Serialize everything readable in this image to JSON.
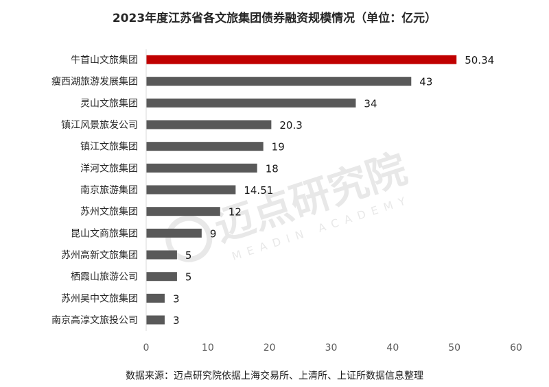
{
  "chart_data": {
    "type": "bar",
    "orientation": "horizontal",
    "title": "2023年度江苏省各文旅集团债券融资规模情况（单位：亿元）",
    "categories": [
      "牛首山文旅集团",
      "瘦西湖旅游发展集团",
      "灵山文旅集团",
      "镇江风景旅发公司",
      "镇江文旅集团",
      "洋河文旅集团",
      "南京旅游集团",
      "苏州文旅集团",
      "昆山文商旅集团",
      "苏州高新文旅集团",
      "栖霞山旅游公司",
      "苏州吴中文旅集团",
      "南京高淳文旅投公司"
    ],
    "values": [
      50.34,
      43,
      34,
      20.3,
      19,
      18,
      14.51,
      12,
      9,
      5,
      5,
      3,
      3
    ],
    "value_labels": [
      "50.34",
      "43",
      "34",
      "20.3",
      "19",
      "18",
      "14.51",
      "12",
      "9",
      "5",
      "5",
      "3",
      "3"
    ],
    "xlim": [
      0,
      60
    ],
    "xticks": [
      0,
      10,
      20,
      30,
      40,
      50,
      60
    ],
    "xlabel": "",
    "ylabel": "",
    "grid": false,
    "highlight_color": "#c00000",
    "bar_color": "#595959",
    "source": "数据来源：迈点研究院依据上海交易所、上清所、上证所数据信息整理"
  },
  "watermark": {
    "cn": "迈点研究院",
    "en": "MEADIN ACADEMY"
  }
}
